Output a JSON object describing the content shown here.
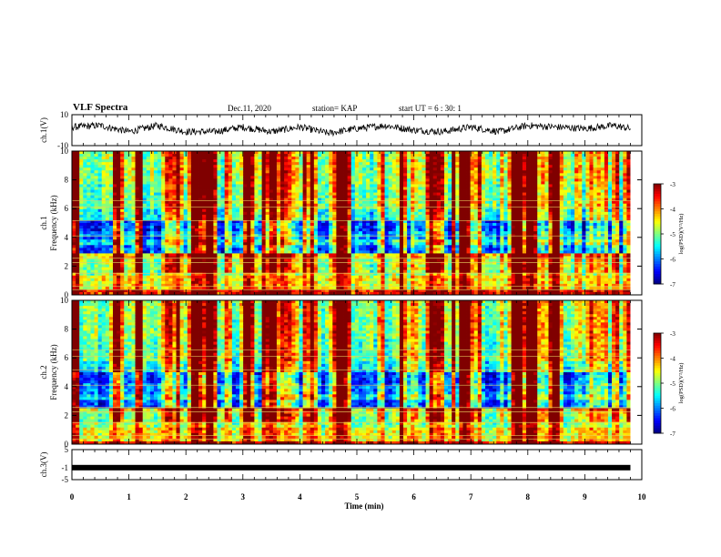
{
  "header": {
    "title": "VLF Spectra",
    "date": "Dec.11, 2020",
    "station": "station= KAP",
    "start_ut": "start  UT =  6 : 30: 1"
  },
  "colors": {
    "axis": "#000000",
    "trace": "#000000",
    "background": "#ffffff"
  },
  "chart_data": [
    {
      "type": "line",
      "panel": "ch.1 waveform",
      "ylabel": "ch.1(V)",
      "ylim": [
        -10,
        10
      ],
      "yticks": [
        "10",
        "-10"
      ],
      "xlim": [
        0,
        10
      ],
      "series": [
        {
          "x": [
            0,
            0.5,
            1,
            1.5,
            2,
            2.5,
            3,
            3.5,
            4,
            4.5,
            5,
            5.5,
            6,
            6.5,
            7,
            7.5,
            8,
            8.5,
            9,
            9.5,
            9.8
          ],
          "values": [
            2,
            3,
            -1,
            3,
            -1,
            -1,
            2,
            -1,
            2,
            -2,
            1,
            3,
            0,
            -1,
            2,
            -1,
            3,
            2,
            1,
            3,
            1
          ]
        }
      ]
    },
    {
      "type": "heatmap",
      "panel": "ch.1 spectrogram",
      "ylabel": "ch.1  Frequency (kHz)",
      "ylim": [
        0,
        10
      ],
      "yticks": [
        "0",
        "2",
        "4",
        "6",
        "8",
        "10"
      ],
      "xlim": [
        0,
        9.8
      ],
      "colorbar": {
        "label": "log(PSD)(V²/Hz)",
        "range": [
          -7,
          -3
        ],
        "ticks": [
          "-3",
          "-4",
          "-5",
          "-6",
          "-7"
        ]
      }
    },
    {
      "type": "heatmap",
      "panel": "ch.2 spectrogram",
      "ylabel": "ch.2  Frequency (kHz)",
      "ylim": [
        0,
        10
      ],
      "yticks": [
        "0",
        "2",
        "4",
        "6",
        "8",
        "10"
      ],
      "xlim": [
        0,
        9.8
      ],
      "colorbar": {
        "label": "log(PSD)(V²/Hz)",
        "range": [
          -7,
          -3
        ],
        "ticks": [
          "-3",
          "-4",
          "-5",
          "-6",
          "-7"
        ]
      }
    },
    {
      "type": "line",
      "panel": "ch.3 waveform",
      "ylabel": "ch.3(V)",
      "ylim": [
        -5,
        5
      ],
      "yticks": [
        "5",
        "-1",
        "-5"
      ],
      "xlim": [
        0,
        10
      ],
      "xlabel": "Time  (min)",
      "xticks": [
        "0",
        "1",
        "2",
        "3",
        "4",
        "5",
        "6",
        "7",
        "8",
        "9",
        "10"
      ],
      "series": [
        {
          "x": [
            0,
            9.8
          ],
          "values": [
            -1,
            -1
          ]
        }
      ]
    }
  ]
}
